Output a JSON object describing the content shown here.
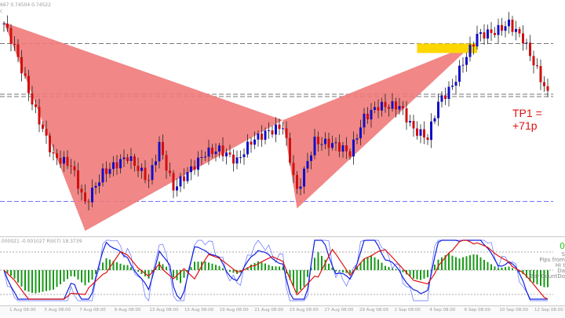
{
  "header": {
    "ohlc_text": "667 0.74504 0.74522",
    "sub_text": "c"
  },
  "indicator": {
    "label": ".000021 -0.001027  RSI(7) 18.3739"
  },
  "side_panel": {
    "value": "0",
    "lines": [
      "S",
      "Pips from",
      "Hi t",
      "Da",
      "Bar CountDo"
    ]
  },
  "annotation": {
    "tp_label": "TP1 = +71p"
  },
  "colors": {
    "pattern": "#f07a7a",
    "bull": "#1010c8",
    "bear": "#d01010",
    "zone": "#ffd700",
    "hist": "#1a9a1a"
  },
  "chart_data": {
    "type": "candlestick",
    "price_range": [
      0.728,
      0.748
    ],
    "candle_count": 155,
    "waypoints": [
      [
        0,
        0.746
      ],
      [
        3,
        0.744
      ],
      [
        8,
        0.7393
      ],
      [
        14,
        0.7347
      ],
      [
        19,
        0.734
      ],
      [
        23,
        0.7307
      ],
      [
        28,
        0.7333
      ],
      [
        35,
        0.7347
      ],
      [
        41,
        0.7327
      ],
      [
        44,
        0.7357
      ],
      [
        48,
        0.732
      ],
      [
        52,
        0.7333
      ],
      [
        57,
        0.735
      ],
      [
        61,
        0.7353
      ],
      [
        66,
        0.7343
      ],
      [
        70,
        0.736
      ],
      [
        74,
        0.7367
      ],
      [
        79,
        0.7373
      ],
      [
        83,
        0.7317
      ],
      [
        88,
        0.736
      ],
      [
        94,
        0.7357
      ],
      [
        98,
        0.735
      ],
      [
        102,
        0.738
      ],
      [
        106,
        0.739
      ],
      [
        112,
        0.739
      ],
      [
        116,
        0.737
      ],
      [
        120,
        0.7363
      ],
      [
        123,
        0.7393
      ],
      [
        127,
        0.7407
      ],
      [
        130,
        0.7427
      ],
      [
        134,
        0.745
      ],
      [
        139,
        0.7453
      ],
      [
        143,
        0.746
      ],
      [
        147,
        0.7447
      ],
      [
        151,
        0.742
      ],
      [
        154,
        0.74
      ]
    ],
    "pattern_points": {
      "X": [
        0,
        0.7461
      ],
      "A": [
        23,
        0.7284
      ],
      "B": [
        79,
        0.7378
      ],
      "C": [
        83,
        0.7303
      ],
      "D": [
        133,
        0.7443
      ]
    },
    "levels": [
      {
        "price": 0.7443,
        "color": "#777"
      },
      {
        "price": 0.74,
        "color": "#777"
      },
      {
        "price": 0.7398,
        "color": "#777"
      },
      {
        "price": 0.7309,
        "color": "#7070ff"
      }
    ],
    "zone": {
      "idx": [
        117,
        134
      ],
      "price": [
        0.7435,
        0.7443
      ]
    },
    "x_labels": [
      "1 Aug 08:00",
      "5 Aug 08:00",
      "7 Aug 08:00",
      "9 Aug 08:00",
      "13 Aug 08:00",
      "15 Aug 08:00",
      "19 Aug 08:00",
      "21 Aug 08:00",
      "23 Aug 08:00",
      "27 Aug 08:00",
      "29 Aug 08:00",
      "2 Sep 08:00",
      "4 Sep 08:00",
      "6 Sep 08:00",
      "10 Sep 08:00",
      "12 Sep 08:00"
    ]
  }
}
